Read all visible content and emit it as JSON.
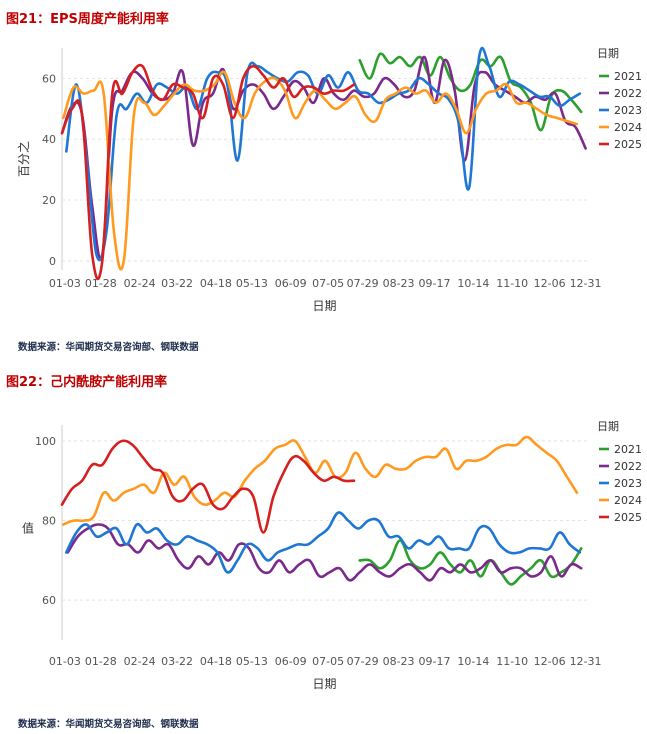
{
  "figures": [
    {
      "title": "图21：EPS周度产能利用率",
      "source": "数据来源：华闻期货交易咨询部、钢联数据",
      "chart_data": {
        "type": "line",
        "title": "EPS周度产能利用率",
        "xlabel": "日期",
        "ylabel": "百分之",
        "categories": [
          "01-03",
          "01-28",
          "02-24",
          "03-22",
          "04-18",
          "05-13",
          "06-09",
          "07-05",
          "07-29",
          "08-23",
          "09-17",
          "10-14",
          "11-10",
          "12-06",
          "12-31"
        ],
        "x_range": [
          1,
          366
        ],
        "ylim": [
          -3,
          70
        ],
        "yticks": [
          0,
          20,
          40,
          60
        ],
        "grid": true,
        "legend_title": "日期",
        "legend_position": "right",
        "series": [
          {
            "name": "2021",
            "color": "#2ca02c",
            "x": [
              208,
              215,
              222,
              229,
              236,
              243,
              250,
              257,
              264,
              271,
              278,
              285,
              292,
              299,
              306,
              313,
              320,
              327,
              334,
              341,
              348,
              355,
              362
            ],
            "values": [
              66,
              60,
              68,
              65,
              67,
              64,
              67,
              61,
              67,
              60,
              56,
              58,
              66,
              64,
              67,
              59,
              57,
              52,
              43,
              54,
              56,
              53,
              49
            ]
          },
          {
            "name": "2022",
            "color": "#7b2a8c",
            "x": [
              1,
              8,
              15,
              22,
              29,
              36,
              43,
              50,
              57,
              64,
              71,
              78,
              85,
              92,
              99,
              106,
              113,
              120,
              127,
              134,
              141,
              148,
              155,
              162,
              169,
              176,
              183,
              190,
              197,
              204,
              211,
              218,
              225,
              232,
              239,
              246,
              253,
              260,
              267,
              274,
              281,
              288,
              295,
              302,
              309,
              316,
              323,
              330,
              337,
              344,
              351,
              358,
              365
            ],
            "values": [
              42,
              51,
              48,
              18,
              2,
              50,
              56,
              62,
              60,
              55,
              53,
              55,
              62,
              38,
              52,
              55,
              63,
              50,
              56,
              58,
              55,
              50,
              54,
              59,
              57,
              52,
              60,
              55,
              53,
              56,
              54,
              55,
              60,
              58,
              54,
              56,
              67,
              52,
              66,
              56,
              33,
              58,
              62,
              58,
              56,
              54,
              52,
              54,
              53,
              55,
              46,
              44,
              37
            ]
          },
          {
            "name": "2023",
            "color": "#1f77d4",
            "x": [
              4,
              11,
              18,
              25,
              32,
              39,
              46,
              53,
              60,
              67,
              74,
              81,
              88,
              95,
              102,
              109,
              116,
              123,
              130,
              137,
              144,
              151,
              158,
              165,
              172,
              179,
              186,
              193,
              200,
              207,
              214,
              221,
              228,
              235,
              242,
              249,
              256,
              263,
              270,
              277,
              284,
              291,
              298,
              305,
              312,
              319,
              326,
              333,
              340,
              347,
              354,
              361
            ],
            "values": [
              36,
              58,
              34,
              2,
              10,
              48,
              50,
              55,
              52,
              58,
              57,
              55,
              57,
              50,
              60,
              62,
              58,
              33,
              62,
              64,
              62,
              60,
              59,
              62,
              61,
              55,
              61,
              57,
              62,
              56,
              55,
              52,
              53,
              55,
              56,
              60,
              58,
              55,
              53,
              45,
              24,
              67,
              64,
              54,
              59,
              58,
              56,
              54,
              54,
              51,
              53,
              55
            ]
          },
          {
            "name": "2024",
            "color": "#ff9a1f",
            "x": [
              2,
              9,
              16,
              23,
              30,
              37,
              44,
              51,
              58,
              65,
              72,
              79,
              86,
              93,
              100,
              107,
              114,
              121,
              128,
              135,
              142,
              149,
              156,
              163,
              170,
              177,
              184,
              191,
              198,
              205,
              212,
              219,
              226,
              233,
              240,
              247,
              254,
              261,
              268,
              275,
              282,
              289,
              296,
              303,
              310,
              317,
              324,
              331,
              338,
              345,
              352,
              359
            ],
            "values": [
              47,
              57,
              55,
              56,
              55,
              10,
              0,
              48,
              52,
              48,
              51,
              55,
              58,
              56,
              56,
              58,
              62,
              52,
              47,
              55,
              59,
              60,
              56,
              47,
              52,
              56,
              53,
              50,
              52,
              54,
              48,
              46,
              53,
              55,
              57,
              55,
              56,
              52,
              55,
              50,
              42,
              50,
              55,
              56,
              58,
              52,
              52,
              50,
              48,
              47,
              46,
              45
            ]
          },
          {
            "name": "2025",
            "color": "#d62020",
            "x": [
              1,
              8,
              15,
              22,
              29,
              36,
              43,
              50,
              57,
              64,
              71,
              78,
              85,
              92,
              99,
              106,
              113,
              120,
              127,
              134,
              141,
              148,
              155,
              162,
              169,
              176,
              183,
              190,
              197,
              204
            ],
            "values": [
              42,
              50,
              48,
              2,
              0,
              55,
              55,
              62,
              64,
              56,
              53,
              58,
              57,
              55,
              47,
              60,
              58,
              47,
              60,
              64,
              61,
              57,
              60,
              54,
              57,
              57,
              55,
              56,
              56,
              58
            ]
          }
        ]
      }
    },
    {
      "title": "图22：己内酰胺产能利用率",
      "source": "数据来源：华闻期货交易咨询部、钢联数据",
      "chart_data": {
        "type": "line",
        "title": "己内酰胺产能利用率",
        "xlabel": "日期",
        "ylabel": "值",
        "categories": [
          "01-03",
          "01-28",
          "02-24",
          "03-22",
          "04-18",
          "05-13",
          "06-09",
          "07-05",
          "07-29",
          "08-23",
          "09-17",
          "10-14",
          "11-10",
          "12-06",
          "12-31"
        ],
        "x_range": [
          1,
          366
        ],
        "ylim": [
          50,
          104
        ],
        "yticks": [
          60,
          80,
          100
        ],
        "grid": true,
        "legend_title": "日期",
        "legend_position": "right",
        "series": [
          {
            "name": "2021",
            "color": "#2ca02c",
            "x": [
              208,
              215,
              222,
              229,
              236,
              243,
              250,
              257,
              264,
              271,
              278,
              285,
              292,
              299,
              306,
              313,
              320,
              327,
              334,
              341,
              348,
              355,
              362
            ],
            "values": [
              70,
              70,
              68,
              70,
              75,
              70,
              68,
              69,
              72,
              69,
              67,
              70,
              66,
              70,
              67,
              64,
              66,
              68,
              70,
              66,
              67,
              69,
              73
            ]
          },
          {
            "name": "2022",
            "color": "#7b2a8c",
            "x": [
              5,
              12,
              19,
              26,
              33,
              40,
              47,
              54,
              61,
              68,
              75,
              82,
              89,
              96,
              103,
              110,
              117,
              124,
              131,
              138,
              145,
              152,
              159,
              166,
              173,
              180,
              187,
              194,
              201,
              208,
              215,
              222,
              229,
              236,
              243,
              250,
              257,
              264,
              271,
              278,
              285,
              292,
              299,
              306,
              313,
              320,
              327,
              334,
              341,
              348,
              355,
              362
            ],
            "values": [
              72,
              76,
              78,
              79,
              78,
              74,
              74,
              72,
              75,
              73,
              74,
              70,
              68,
              71,
              69,
              72,
              70,
              74,
              73,
              68,
              67,
              70,
              67,
              69,
              70,
              66,
              67,
              68,
              65,
              67,
              69,
              67,
              66,
              68,
              69,
              67,
              65,
              68,
              67,
              69,
              67,
              68,
              70,
              67,
              68,
              68,
              66,
              67,
              71,
              66,
              69,
              68
            ]
          },
          {
            "name": "2023",
            "color": "#1f77d4",
            "x": [
              4,
              11,
              18,
              25,
              32,
              39,
              46,
              53,
              60,
              67,
              74,
              81,
              88,
              95,
              102,
              109,
              116,
              123,
              130,
              137,
              144,
              151,
              158,
              165,
              172,
              179,
              186,
              193,
              200,
              207,
              214,
              221,
              228,
              235,
              242,
              249,
              256,
              263,
              270,
              277,
              284,
              291,
              298,
              305,
              312,
              319,
              326,
              333,
              340,
              347,
              354,
              361
            ],
            "values": [
              72,
              77,
              79,
              76,
              77,
              78,
              74,
              79,
              77,
              78,
              75,
              74,
              76,
              75,
              74,
              72,
              67,
              70,
              74,
              73,
              70,
              72,
              73,
              74,
              74,
              76,
              78,
              82,
              80,
              78,
              80,
              80,
              76,
              76,
              73,
              75,
              74,
              76,
              73,
              73,
              73,
              78,
              78,
              74,
              72,
              72,
              73,
              73,
              73,
              77,
              74,
              72
            ]
          },
          {
            "name": "2024",
            "color": "#ff9a1f",
            "x": [
              2,
              9,
              16,
              23,
              30,
              37,
              44,
              51,
              58,
              65,
              72,
              79,
              86,
              93,
              100,
              107,
              114,
              121,
              128,
              135,
              142,
              149,
              156,
              163,
              170,
              177,
              184,
              191,
              198,
              205,
              212,
              219,
              226,
              233,
              240,
              247,
              254,
              261,
              268,
              275,
              282,
              289,
              296,
              303,
              310,
              317,
              324,
              331,
              338,
              345,
              352,
              359
            ],
            "values": [
              79,
              80,
              80,
              81,
              87,
              85,
              87,
              88,
              89,
              87,
              92,
              89,
              91,
              86,
              84,
              85,
              87,
              86,
              90,
              93,
              95,
              98,
              99,
              100,
              96,
              92,
              95,
              91,
              92,
              97,
              93,
              91,
              94,
              93,
              93,
              95,
              96,
              96,
              98,
              93,
              95,
              95,
              96,
              98,
              99,
              99,
              101,
              99,
              97,
              95,
              91,
              87
            ]
          },
          {
            "name": "2025",
            "color": "#d62020",
            "x": [
              1,
              8,
              15,
              22,
              29,
              36,
              43,
              50,
              57,
              64,
              71,
              78,
              85,
              92,
              99,
              106,
              113,
              120,
              127,
              134,
              141,
              148,
              155,
              162,
              169,
              176,
              183,
              190,
              197,
              204
            ],
            "values": [
              84,
              88,
              90,
              94,
              94,
              98,
              100,
              99,
              96,
              93,
              92,
              86,
              85,
              88,
              89,
              84,
              83,
              86,
              88,
              86,
              77,
              86,
              92,
              96,
              95,
              92,
              90,
              91,
              90,
              90
            ]
          }
        ]
      }
    }
  ]
}
